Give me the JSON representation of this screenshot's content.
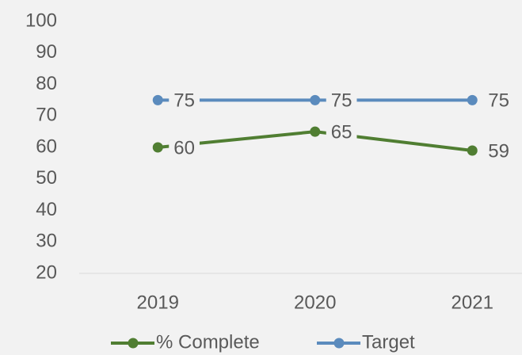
{
  "chart_data": {
    "type": "line",
    "categories": [
      "2019",
      "2020",
      "2021"
    ],
    "series": [
      {
        "name": "% Complete",
        "color": "#507e32",
        "values": [
          60,
          65,
          59
        ]
      },
      {
        "name": "Target",
        "color": "#5b8bbd",
        "values": [
          75,
          75,
          75
        ]
      }
    ],
    "ylim": [
      20,
      100
    ],
    "yticks": [
      20,
      30,
      40,
      50,
      60,
      70,
      80,
      90,
      100
    ],
    "grid": false,
    "legend": "bottom",
    "data_labels": true
  }
}
